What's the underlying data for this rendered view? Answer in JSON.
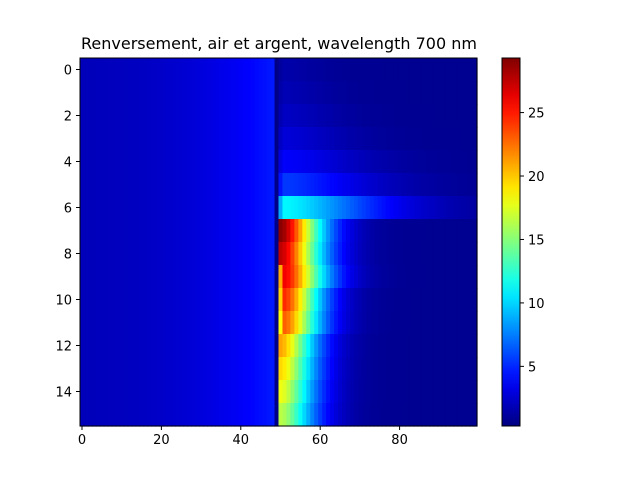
{
  "chart_data": {
    "type": "heatmap",
    "title": "Renversement, air et argent, wavelength 700 nm",
    "xlabel": "",
    "ylabel": "",
    "n_cols": 100,
    "n_rows": 16,
    "x_ticks": [
      0,
      20,
      40,
      60,
      80
    ],
    "y_ticks": [
      0,
      2,
      4,
      6,
      8,
      10,
      12,
      14
    ],
    "colorbar": {
      "min": 0.3,
      "max": 29.3,
      "ticks": [
        5,
        10,
        15,
        20,
        25
      ]
    },
    "colormap": "jet",
    "left_region": {
      "cols": [
        0,
        49
      ],
      "value_at_col0": 2.0,
      "value_at_col48": 4.6,
      "note": "smooth gradient, nearly identical in every row"
    },
    "boundary_col_value": 0.5,
    "right_tail_floor": 0.8,
    "right_region_rows": [
      {
        "row": 0,
        "peak": 1.5,
        "peak_col": 51,
        "width": 10
      },
      {
        "row": 1,
        "peak": 1.8,
        "peak_col": 51,
        "width": 12
      },
      {
        "row": 2,
        "peak": 2.2,
        "peak_col": 51,
        "width": 14
      },
      {
        "row": 3,
        "peak": 2.8,
        "peak_col": 51,
        "width": 16
      },
      {
        "row": 4,
        "peak": 3.8,
        "peak_col": 51,
        "width": 20
      },
      {
        "row": 5,
        "peak": 5.5,
        "peak_col": 51,
        "width": 22
      },
      {
        "row": 6,
        "peak": 11.0,
        "peak_col": 51,
        "width": 24
      },
      {
        "row": 7,
        "peak": 29.0,
        "peak_col": 50,
        "width": 10
      },
      {
        "row": 8,
        "peak": 27.5,
        "peak_col": 50,
        "width": 10
      },
      {
        "row": 9,
        "peak": 26.0,
        "peak_col": 51,
        "width": 10
      },
      {
        "row": 10,
        "peak": 24.5,
        "peak_col": 51,
        "width": 9
      },
      {
        "row": 11,
        "peak": 23.0,
        "peak_col": 51,
        "width": 9
      },
      {
        "row": 12,
        "peak": 21.0,
        "peak_col": 50,
        "width": 9
      },
      {
        "row": 13,
        "peak": 19.5,
        "peak_col": 50,
        "width": 9
      },
      {
        "row": 14,
        "peak": 18.0,
        "peak_col": 50,
        "width": 9
      },
      {
        "row": 15,
        "peak": 16.5,
        "peak_col": 50,
        "width": 9
      }
    ]
  }
}
